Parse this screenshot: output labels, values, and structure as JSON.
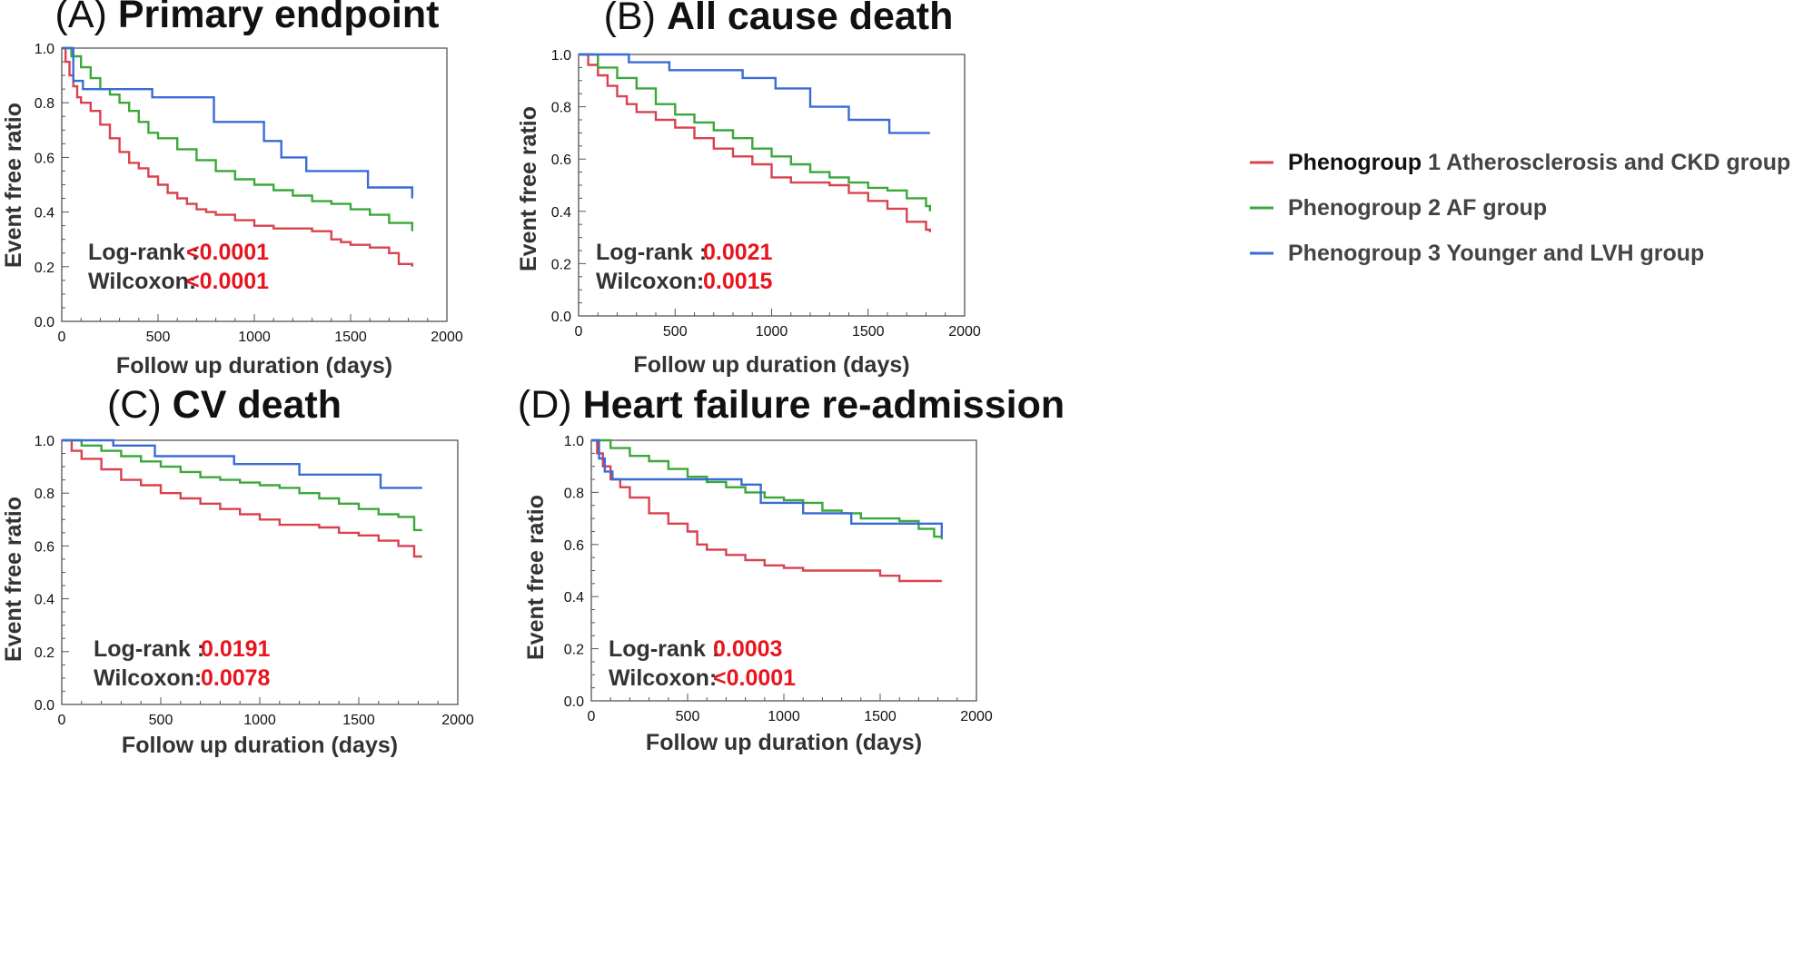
{
  "colors": {
    "phenogroup1": "#d9424f",
    "phenogroup2": "#3aa83a",
    "phenogroup3": "#3a6bd6",
    "pvalue": "#e8141e",
    "axis": "#555555"
  },
  "legend": [
    {
      "bold": "Phenogroup",
      "rest": " 1 Atherosclerosis and CKD group"
    },
    {
      "bold": "",
      "rest": "Phenogroup 2 AF group"
    },
    {
      "bold": "",
      "rest": "Phenogroup 3 Younger and LVH group"
    }
  ],
  "chart_data": [
    {
      "type": "line",
      "step": true,
      "title_prefix": "(A)",
      "title": "Primary endpoint",
      "xlabel": "Follow up duration (days)",
      "ylabel": "Event free ratio",
      "xlim": [
        0,
        2000
      ],
      "ylim": [
        0.0,
        1.0
      ],
      "x_ticks": [
        0,
        500,
        1000,
        1500,
        2000
      ],
      "y_ticks": [
        "0.0",
        "0.2",
        "0.4",
        "0.6",
        "0.8",
        "1.0"
      ],
      "stats": {
        "logrank_label": "Log-rank :",
        "logrank": "<0.0001",
        "wilcoxon_label": "Wilcoxon:",
        "wilcoxon": "<0.0001"
      },
      "series": [
        {
          "name": "Phenogroup 1 Atherosclerosis and CKD group",
          "x": [
            0,
            20,
            40,
            60,
            80,
            100,
            150,
            200,
            250,
            300,
            350,
            400,
            450,
            500,
            550,
            600,
            650,
            700,
            750,
            800,
            900,
            1000,
            1100,
            1200,
            1300,
            1400,
            1450,
            1500,
            1600,
            1700,
            1750,
            1820
          ],
          "y": [
            1.0,
            0.95,
            0.9,
            0.86,
            0.82,
            0.8,
            0.77,
            0.72,
            0.67,
            0.62,
            0.58,
            0.56,
            0.53,
            0.5,
            0.47,
            0.45,
            0.43,
            0.41,
            0.4,
            0.39,
            0.37,
            0.35,
            0.34,
            0.34,
            0.33,
            0.3,
            0.29,
            0.28,
            0.27,
            0.25,
            0.21,
            0.2
          ]
        },
        {
          "name": "Phenogroup 2 AF group",
          "x": [
            0,
            50,
            100,
            150,
            200,
            250,
            300,
            350,
            400,
            450,
            500,
            600,
            700,
            800,
            900,
            1000,
            1100,
            1200,
            1300,
            1400,
            1500,
            1600,
            1700,
            1820
          ],
          "y": [
            1.0,
            0.97,
            0.93,
            0.89,
            0.85,
            0.83,
            0.8,
            0.77,
            0.73,
            0.69,
            0.67,
            0.63,
            0.59,
            0.55,
            0.52,
            0.5,
            0.48,
            0.46,
            0.44,
            0.43,
            0.41,
            0.39,
            0.36,
            0.33
          ]
        },
        {
          "name": "Phenogroup 3 Younger and LVH group",
          "x": [
            0,
            60,
            110,
            470,
            790,
            1050,
            1140,
            1270,
            1590,
            1820
          ],
          "y": [
            1.0,
            0.88,
            0.85,
            0.82,
            0.73,
            0.66,
            0.6,
            0.55,
            0.49,
            0.45
          ]
        }
      ]
    },
    {
      "type": "line",
      "step": true,
      "title_prefix": "(B)",
      "title": "All cause death",
      "xlabel": "Follow up duration (days)",
      "ylabel": "Event free ratio",
      "xlim": [
        0,
        2000
      ],
      "ylim": [
        0.0,
        1.0
      ],
      "x_ticks": [
        0,
        500,
        1000,
        1500,
        2000
      ],
      "y_ticks": [
        "0.0",
        "0.2",
        "0.4",
        "0.6",
        "0.8",
        "1.0"
      ],
      "stats": {
        "logrank_label": "Log-rank :",
        "logrank": "0.0021",
        "wilcoxon_label": "Wilcoxon:",
        "wilcoxon": "0.0015"
      },
      "series": [
        {
          "name": "Phenogroup 1 Atherosclerosis and CKD group",
          "x": [
            0,
            50,
            100,
            150,
            200,
            250,
            300,
            400,
            500,
            600,
            700,
            800,
            900,
            1000,
            1100,
            1300,
            1400,
            1500,
            1600,
            1700,
            1800,
            1820
          ],
          "y": [
            1.0,
            0.96,
            0.92,
            0.88,
            0.84,
            0.81,
            0.78,
            0.75,
            0.72,
            0.68,
            0.64,
            0.61,
            0.58,
            0.53,
            0.51,
            0.5,
            0.47,
            0.44,
            0.41,
            0.36,
            0.33,
            0.32
          ]
        },
        {
          "name": "Phenogroup 2 AF group",
          "x": [
            0,
            100,
            200,
            300,
            400,
            500,
            600,
            700,
            800,
            900,
            1000,
            1100,
            1200,
            1300,
            1400,
            1500,
            1600,
            1700,
            1800,
            1820
          ],
          "y": [
            1.0,
            0.95,
            0.91,
            0.87,
            0.81,
            0.77,
            0.74,
            0.71,
            0.68,
            0.64,
            0.61,
            0.58,
            0.55,
            0.53,
            0.51,
            0.49,
            0.48,
            0.45,
            0.42,
            0.4
          ]
        },
        {
          "name": "Phenogroup 3 Younger and LVH group",
          "x": [
            0,
            260,
            470,
            850,
            1020,
            1200,
            1400,
            1610,
            1820
          ],
          "y": [
            1.0,
            0.97,
            0.94,
            0.91,
            0.87,
            0.8,
            0.75,
            0.7,
            0.7
          ]
        }
      ]
    },
    {
      "type": "line",
      "step": true,
      "title_prefix": "(C)",
      "title": "CV death",
      "xlabel": "Follow up duration (days)",
      "ylabel": "Event free ratio",
      "xlim": [
        0,
        2000
      ],
      "ylim": [
        0.0,
        1.0
      ],
      "x_ticks": [
        0,
        500,
        1000,
        1500,
        2000
      ],
      "y_ticks": [
        "0.0",
        "0.2",
        "0.4",
        "0.6",
        "0.8",
        "1.0"
      ],
      "stats": {
        "logrank_label": "Log-rank :",
        "logrank": "0.0191",
        "wilcoxon_label": "Wilcoxon:",
        "wilcoxon": "0.0078"
      },
      "series": [
        {
          "name": "Phenogroup 1 Atherosclerosis and CKD group",
          "x": [
            0,
            50,
            100,
            200,
            300,
            400,
            500,
            600,
            700,
            800,
            900,
            1000,
            1100,
            1200,
            1300,
            1400,
            1500,
            1600,
            1700,
            1780,
            1820
          ],
          "y": [
            1.0,
            0.96,
            0.93,
            0.89,
            0.85,
            0.83,
            0.8,
            0.78,
            0.76,
            0.74,
            0.72,
            0.7,
            0.68,
            0.68,
            0.67,
            0.65,
            0.64,
            0.62,
            0.6,
            0.56,
            0.56
          ]
        },
        {
          "name": "Phenogroup 2 AF group",
          "x": [
            0,
            100,
            200,
            300,
            400,
            500,
            600,
            700,
            800,
            900,
            1000,
            1100,
            1200,
            1300,
            1400,
            1500,
            1600,
            1700,
            1780,
            1820
          ],
          "y": [
            1.0,
            0.98,
            0.96,
            0.94,
            0.92,
            0.9,
            0.88,
            0.86,
            0.85,
            0.84,
            0.83,
            0.82,
            0.8,
            0.78,
            0.76,
            0.74,
            0.72,
            0.71,
            0.66,
            0.66
          ]
        },
        {
          "name": "Phenogroup 3 Younger and LVH group",
          "x": [
            0,
            260,
            470,
            870,
            1200,
            1610,
            1820
          ],
          "y": [
            1.0,
            0.98,
            0.94,
            0.91,
            0.87,
            0.82,
            0.82
          ]
        }
      ]
    },
    {
      "type": "line",
      "step": true,
      "title_prefix": "(D)",
      "title": "Heart failure re-admission",
      "xlabel": "Follow up duration (days)",
      "ylabel": "Event free ratio",
      "xlim": [
        0,
        2000
      ],
      "ylim": [
        0.0,
        1.0
      ],
      "x_ticks": [
        0,
        500,
        1000,
        1500,
        2000
      ],
      "y_ticks": [
        "0.0",
        "0.2",
        "0.4",
        "0.6",
        "0.8",
        "1.0"
      ],
      "stats": {
        "logrank_label": "Log-rank :",
        "logrank": "0.0003",
        "wilcoxon_label": "Wilcoxon:",
        "wilcoxon": "<0.0001"
      },
      "series": [
        {
          "name": "Phenogroup 1 Atherosclerosis and CKD group",
          "x": [
            0,
            30,
            60,
            100,
            150,
            200,
            300,
            400,
            500,
            550,
            600,
            700,
            800,
            900,
            1000,
            1100,
            1200,
            1300,
            1400,
            1500,
            1600,
            1700,
            1820
          ],
          "y": [
            1.0,
            0.95,
            0.9,
            0.85,
            0.82,
            0.78,
            0.72,
            0.68,
            0.65,
            0.6,
            0.58,
            0.56,
            0.54,
            0.52,
            0.51,
            0.5,
            0.5,
            0.5,
            0.5,
            0.48,
            0.46,
            0.46,
            0.46
          ]
        },
        {
          "name": "Phenogroup 2 AF group",
          "x": [
            0,
            100,
            200,
            300,
            400,
            500,
            600,
            700,
            800,
            900,
            1000,
            1100,
            1200,
            1300,
            1400,
            1500,
            1600,
            1700,
            1780,
            1820
          ],
          "y": [
            1.0,
            0.97,
            0.94,
            0.92,
            0.89,
            0.86,
            0.84,
            0.82,
            0.8,
            0.78,
            0.77,
            0.76,
            0.73,
            0.72,
            0.7,
            0.7,
            0.69,
            0.66,
            0.63,
            0.62
          ]
        },
        {
          "name": "Phenogroup 3 Younger and LVH group",
          "x": [
            0,
            40,
            70,
            110,
            780,
            880,
            1100,
            1350,
            1820
          ],
          "y": [
            1.0,
            0.93,
            0.88,
            0.85,
            0.83,
            0.76,
            0.72,
            0.68,
            0.63
          ]
        }
      ]
    }
  ]
}
